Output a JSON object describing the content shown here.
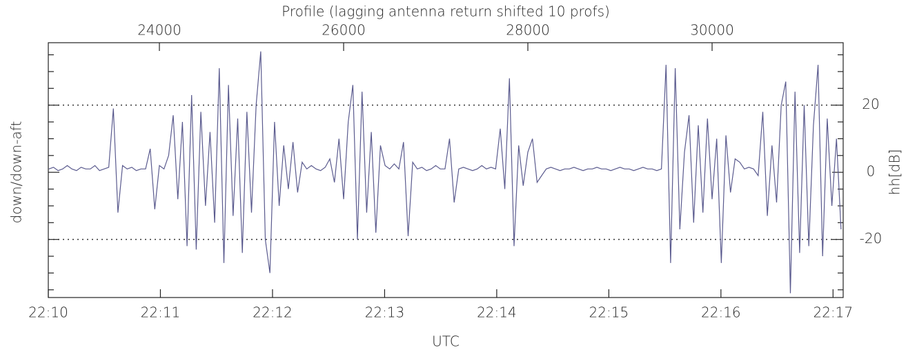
{
  "chart_data": {
    "type": "line",
    "title": "Profile (lagging antenna return shifted 10 profs)",
    "x_label": "UTC",
    "y_label": "down/down-aft",
    "y2_label": "hh[dB]",
    "color": "#5a5a8e",
    "xlim": [
      22794,
      31423
    ],
    "xticks": [
      24000,
      26000,
      28000,
      30000
    ],
    "x2ticks": [
      {
        "value": 22794,
        "label": "22:10"
      },
      {
        "value": 24011,
        "label": "22:11"
      },
      {
        "value": 25228,
        "label": "22:12"
      },
      {
        "value": 26445,
        "label": "22:13"
      },
      {
        "value": 27662,
        "label": "22:14"
      },
      {
        "value": 28879,
        "label": "22:15"
      },
      {
        "value": 30096,
        "label": "22:16"
      },
      {
        "value": 31313,
        "label": "22:17"
      }
    ],
    "ylim": [
      -37.3,
      38.6
    ],
    "yticks": [
      -20,
      0,
      20
    ],
    "yminorticks": [
      -35,
      -30,
      -25,
      -15,
      -10,
      -5,
      5,
      10,
      15,
      25,
      30,
      35
    ],
    "ref_lines": [
      -20,
      20
    ],
    "x": [
      22800,
      22850,
      22900,
      22950,
      23000,
      23050,
      23100,
      23150,
      23200,
      23250,
      23300,
      23350,
      23400,
      23450,
      23500,
      23550,
      23600,
      23650,
      23700,
      23750,
      23800,
      23850,
      23900,
      23950,
      24000,
      24050,
      24100,
      24150,
      24200,
      24250,
      24300,
      24350,
      24400,
      24450,
      24500,
      24550,
      24600,
      24650,
      24700,
      24750,
      24800,
      24850,
      24900,
      24950,
      25000,
      25050,
      25100,
      25150,
      25200,
      25250,
      25300,
      25350,
      25400,
      25450,
      25500,
      25550,
      25600,
      25650,
      25700,
      25750,
      25800,
      25850,
      25900,
      25950,
      26000,
      26050,
      26100,
      26150,
      26200,
      26250,
      26300,
      26350,
      26400,
      26450,
      26500,
      26550,
      26600,
      26650,
      26700,
      26750,
      26800,
      26850,
      26900,
      26950,
      27000,
      27050,
      27100,
      27150,
      27200,
      27250,
      27300,
      27350,
      27400,
      27450,
      27500,
      27550,
      27600,
      27650,
      27700,
      27750,
      27800,
      27850,
      27900,
      27950,
      28000,
      28050,
      28100,
      28150,
      28200,
      28250,
      28300,
      28350,
      28400,
      28450,
      28500,
      28550,
      28600,
      28650,
      28700,
      28750,
      28800,
      28850,
      28900,
      28950,
      29000,
      29050,
      29100,
      29150,
      29200,
      29250,
      29300,
      29350,
      29400,
      29450,
      29500,
      29550,
      29600,
      29650,
      29700,
      29750,
      29800,
      29850,
      29900,
      29950,
      30000,
      30050,
      30100,
      30150,
      30200,
      30250,
      30300,
      30350,
      30400,
      30450,
      30500,
      30550,
      30600,
      30650,
      30700,
      30750,
      30800,
      30850,
      30900,
      30950,
      31000,
      31050,
      31100,
      31150,
      31200,
      31250,
      31300,
      31350,
      31400
    ],
    "values": [
      1,
      1.5,
      0.5,
      1,
      2,
      1,
      0.5,
      1.5,
      1,
      1,
      2,
      0.5,
      1,
      1.5,
      19,
      -12,
      2,
      1,
      1.5,
      0.5,
      1,
      1,
      7,
      -11,
      2,
      1,
      5,
      17,
      -8,
      15,
      -22,
      23,
      -23,
      18,
      -10,
      12,
      -15,
      31,
      -27,
      26,
      -13,
      16,
      -24,
      18,
      -12,
      20,
      36,
      -20,
      -30,
      15,
      -10,
      8,
      -5,
      9,
      -6,
      3,
      1,
      2,
      1,
      0.5,
      1.5,
      4,
      -3,
      10,
      -8,
      15,
      26,
      -20,
      24,
      -12,
      12,
      -18,
      8,
      2,
      1,
      2.5,
      1,
      9,
      -19,
      3,
      1,
      1.5,
      0.5,
      1,
      2,
      1,
      1,
      10,
      -9,
      1,
      1.5,
      1,
      0.5,
      1,
      2,
      1,
      1.5,
      1,
      13,
      -5,
      28,
      -22,
      8,
      -4,
      6,
      10,
      -3,
      -1,
      1,
      1.5,
      1,
      0.5,
      1,
      1,
      1.5,
      1,
      0.5,
      1,
      1,
      1.5,
      1,
      1,
      0.5,
      1,
      1.5,
      1,
      1,
      0.5,
      1,
      1.5,
      1,
      1,
      0.5,
      1,
      32,
      -27,
      31,
      -17,
      6,
      17,
      -15,
      14,
      -12,
      16,
      -8,
      10,
      -27,
      11,
      -6,
      4,
      3,
      1,
      1.5,
      1,
      -1,
      18,
      -13,
      8,
      -9,
      20,
      27,
      -36,
      24,
      -24,
      20,
      -22,
      14,
      32,
      -25,
      16,
      -10,
      10,
      -17
    ]
  }
}
